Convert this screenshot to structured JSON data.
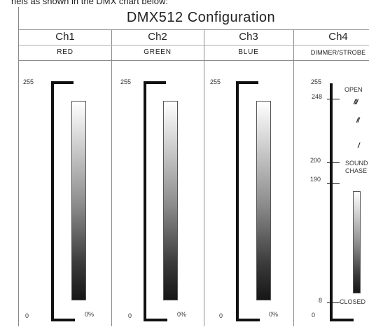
{
  "intro_text": "nels as shown in the DMX chart below:",
  "title": "DMX512 Configuration",
  "channels": [
    {
      "name": "Ch1",
      "function": "RED",
      "max_label": "255",
      "min_label": "0",
      "percent_label": "0%"
    },
    {
      "name": "Ch2",
      "function": "GREEN",
      "max_label": "255",
      "min_label": "0",
      "percent_label": "0%"
    },
    {
      "name": "Ch3",
      "function": "BLUE",
      "max_label": "255",
      "min_label": "0",
      "percent_label": "0%"
    },
    {
      "name": "Ch4",
      "function": "DIMMER/STROBE",
      "scale_labels": [
        "255",
        "248",
        "200",
        "190",
        "8",
        "0"
      ],
      "open_label": "OPEN",
      "sound_label": "SOUND",
      "chase_label": "CHASE",
      "closed_label": "CLOSED",
      "strobe_symbols": [
        "///",
        "//",
        "/"
      ]
    }
  ]
}
